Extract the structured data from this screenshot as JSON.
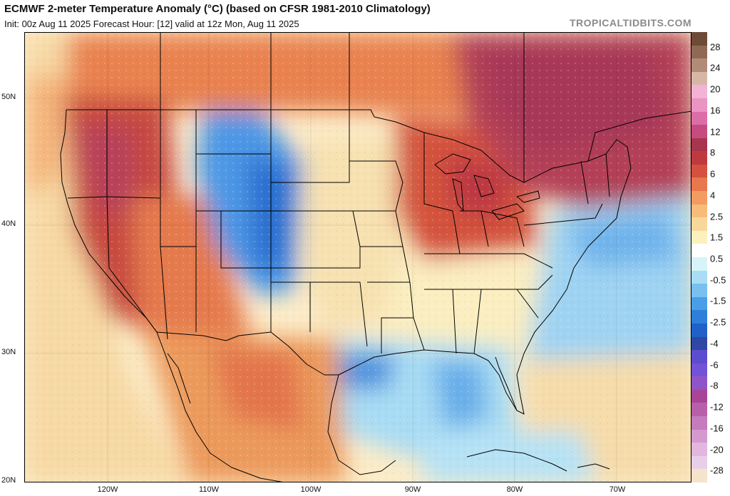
{
  "header": {
    "title": "ECMWF 2-meter Temperature Anomaly (°C) (based on CFSR 1981-2010 Climatology)",
    "subtitle": "Init: 00z Aug 11 2025   Forecast Hour: [12]   valid at 12z Mon, Aug 11 2025",
    "brand": "TROPICALTIDBITS.COM"
  },
  "map": {
    "lat_labels": [
      "50N",
      "40N",
      "30N",
      "20N"
    ],
    "lon_labels": [
      "120W",
      "110W",
      "100W",
      "90W",
      "80W",
      "70W"
    ]
  },
  "colors": {
    "colorbar": [
      "#f5e3cc",
      "#e8cfe9",
      "#e2b6df",
      "#d49ad0",
      "#c57bbd",
      "#b760aa",
      "#a94599",
      "#8f55c8",
      "#7252d6",
      "#5b4cd0",
      "#3047a3",
      "#2061c9",
      "#2d7fd9",
      "#4a9ee8",
      "#79bff0",
      "#a8ddf5",
      "#d5f3f9",
      "#ffffff",
      "#fbf1bd",
      "#f8d89a",
      "#f7bc79",
      "#f29c60",
      "#e7774c",
      "#d5513d",
      "#bf3a3f",
      "#a8354e",
      "#c64b7f",
      "#dc6ea7",
      "#ea94c3",
      "#f2b3d4",
      "#d6b7a7",
      "#b18b76",
      "#8e6a56",
      "#6e4b36"
    ],
    "land_fill": "#f5f3ee",
    "ocean_fill": "#fdf5d6",
    "border": "#000000"
  },
  "colorbar": {
    "labels": [
      "28",
      "24",
      "20",
      "16",
      "12",
      "8",
      "6",
      "4",
      "2.5",
      "1.5",
      "0.5",
      "-0.5",
      "-1.5",
      "-2.5",
      "-4",
      "-6",
      "-8",
      "-12",
      "-16",
      "-20",
      "-28"
    ]
  }
}
